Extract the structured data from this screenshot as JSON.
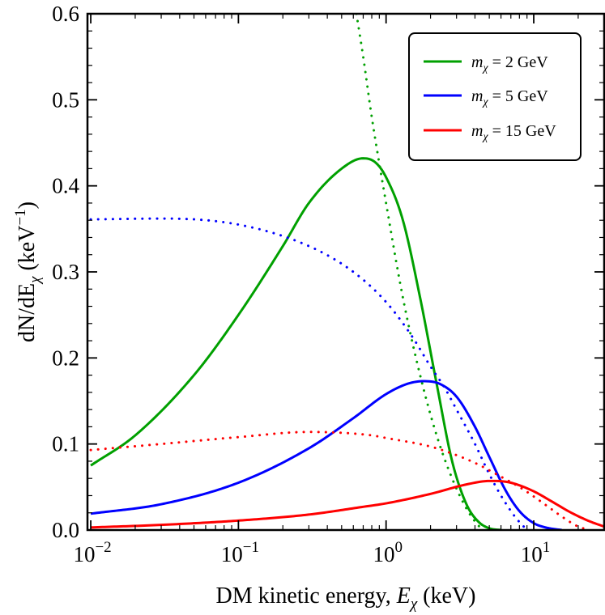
{
  "chart_data": {
    "type": "line",
    "xscale": "log",
    "xlim": [
      0.0095,
      30
    ],
    "ylim": [
      0,
      0.6
    ],
    "xlabel": {
      "prefix": "DM kinetic energy, ",
      "symbol": "E",
      "sub": "χ",
      "suffix": " (keV)"
    },
    "ylabel": {
      "prefix": "dN/dE",
      "sub": "χ",
      "mid": " (keV",
      "sup": "−1",
      "suffix": ")"
    },
    "x_ticks": [
      {
        "value": 0.01,
        "base": "10",
        "exp": "−2"
      },
      {
        "value": 0.1,
        "base": "10",
        "exp": "−1"
      },
      {
        "value": 1,
        "base": "10",
        "exp": "0"
      },
      {
        "value": 10,
        "base": "10",
        "exp": "1"
      }
    ],
    "y_ticks": [
      {
        "value": 0.0,
        "label": "0.0"
      },
      {
        "value": 0.1,
        "label": "0.1"
      },
      {
        "value": 0.2,
        "label": "0.2"
      },
      {
        "value": 0.3,
        "label": "0.3"
      },
      {
        "value": 0.4,
        "label": "0.4"
      },
      {
        "value": 0.5,
        "label": "0.5"
      },
      {
        "value": 0.6,
        "label": "0.6"
      }
    ],
    "legend_position": "top-right",
    "series": [
      {
        "name": "mχ = 2 GeV",
        "legend": {
          "m": "m",
          "sub": "χ",
          "rest": " = 2 GeV"
        },
        "color": "#00a000",
        "style": "solid",
        "x": [
          0.01,
          0.02,
          0.05,
          0.1,
          0.2,
          0.3,
          0.5,
          0.7,
          0.85,
          1.0,
          1.3,
          1.7,
          2.2,
          2.8,
          3.5,
          4.2,
          5.0,
          6.0
        ],
        "y": [
          0.075,
          0.11,
          0.18,
          0.25,
          0.33,
          0.38,
          0.42,
          0.432,
          0.427,
          0.41,
          0.36,
          0.27,
          0.17,
          0.08,
          0.03,
          0.01,
          0.002,
          0.0
        ]
      },
      {
        "name": "mχ = 2 GeV",
        "color": "#00a000",
        "style": "dotted",
        "x": [
          0.63,
          0.7,
          0.8,
          1.0,
          1.3,
          1.7,
          2.2,
          2.8,
          3.5,
          4.0,
          4.5
        ],
        "y": [
          0.6,
          0.55,
          0.48,
          0.38,
          0.27,
          0.18,
          0.11,
          0.06,
          0.025,
          0.01,
          0.0
        ]
      },
      {
        "name": "mχ = 5 GeV",
        "legend": {
          "m": "m",
          "sub": "χ",
          "rest": " = 5 GeV"
        },
        "color": "#0000ff",
        "style": "solid",
        "x": [
          0.01,
          0.03,
          0.1,
          0.3,
          0.6,
          1.0,
          1.4,
          1.8,
          2.3,
          3.0,
          4.0,
          5.0,
          6.5,
          8.0,
          10.0,
          12.0,
          14.0,
          15.5
        ],
        "y": [
          0.019,
          0.03,
          0.055,
          0.095,
          0.13,
          0.158,
          0.17,
          0.173,
          0.17,
          0.155,
          0.12,
          0.085,
          0.045,
          0.022,
          0.008,
          0.003,
          0.001,
          0.0
        ]
      },
      {
        "name": "mχ = 5 GeV",
        "color": "#0000ff",
        "style": "dotted",
        "x": [
          0.01,
          0.03,
          0.1,
          0.3,
          0.6,
          1.0,
          1.5,
          2.0,
          2.5,
          3.0,
          4.0,
          5.0,
          6.0,
          7.5,
          9.0
        ],
        "y": [
          0.361,
          0.362,
          0.355,
          0.33,
          0.3,
          0.265,
          0.225,
          0.19,
          0.165,
          0.14,
          0.1,
          0.065,
          0.04,
          0.015,
          0.0
        ]
      },
      {
        "name": "mχ = 15 GeV",
        "legend": {
          "m": "m",
          "sub": "χ",
          "rest": " = 15 GeV"
        },
        "color": "#ff0000",
        "style": "solid",
        "x": [
          0.01,
          0.03,
          0.1,
          0.3,
          0.7,
          1.0,
          2.0,
          3.5,
          5.0,
          5.5,
          7.0,
          10.0,
          13.0,
          18.0,
          24.0,
          30.0
        ],
        "y": [
          0.003,
          0.006,
          0.011,
          0.018,
          0.027,
          0.031,
          0.042,
          0.053,
          0.057,
          0.057,
          0.055,
          0.045,
          0.034,
          0.02,
          0.01,
          0.004
        ]
      },
      {
        "name": "mχ = 15 GeV",
        "color": "#ff0000",
        "style": "dotted",
        "x": [
          0.01,
          0.03,
          0.1,
          0.3,
          0.5,
          0.8,
          1.0,
          2.0,
          3.0,
          4.0,
          6.0,
          8.0,
          10.0,
          13.0,
          16.0,
          20.0,
          24.0
        ],
        "y": [
          0.093,
          0.1,
          0.108,
          0.114,
          0.113,
          0.11,
          0.107,
          0.097,
          0.087,
          0.078,
          0.062,
          0.05,
          0.039,
          0.025,
          0.014,
          0.004,
          0.0
        ]
      }
    ]
  }
}
